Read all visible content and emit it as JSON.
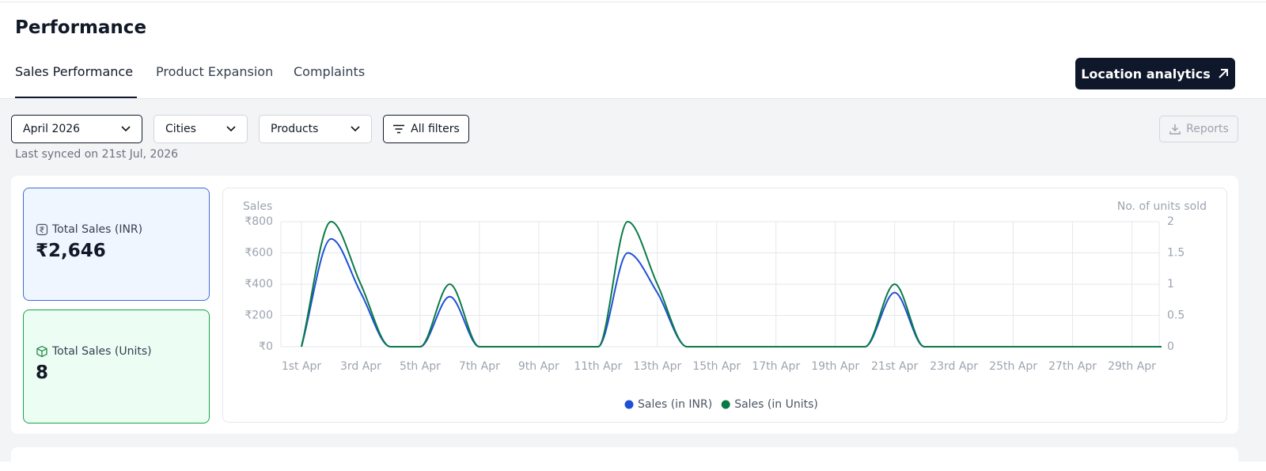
{
  "header": {
    "title": "Performance",
    "tabs": [
      "Sales Performance",
      "Product Expansion",
      "Complaints"
    ],
    "action": "Location analytics"
  },
  "filters": {
    "items": [
      "April 2026",
      "Cities",
      "Products",
      "All filters"
    ],
    "reports": "Reports",
    "sync_note": "Last synced on 21st Jul, 2026"
  },
  "cards": [
    {
      "label": "Total Sales (INR)",
      "value": "₹2,646"
    },
    {
      "label": "Total Sales (Units)",
      "value": "8"
    }
  ],
  "chart_data": {
    "type": "line",
    "ylabel": "Sales",
    "y2label": "No. of units sold",
    "categories": [
      "1st Apr",
      null,
      "3rd Apr",
      null,
      "5th Apr",
      null,
      "7th Apr",
      null,
      "9th Apr",
      null,
      "11th Apr",
      null,
      "13th Apr",
      null,
      "15th Apr",
      null,
      "17th Apr",
      null,
      "19th Apr",
      null,
      "21st Apr",
      null,
      "23rd Apr",
      null,
      "25th Apr",
      null,
      "27th Apr",
      null,
      "29th Apr",
      null
    ],
    "series": [
      {
        "name": "Sales (in INR)",
        "color": "#1d4fd8",
        "values": [
          0,
          690,
          345,
          0,
          0,
          320,
          0,
          0,
          0,
          0,
          0,
          600,
          345,
          0,
          0,
          0,
          0,
          0,
          0,
          0,
          346,
          0,
          0,
          0,
          0,
          0,
          0,
          0,
          0,
          0
        ]
      },
      {
        "name": "Sales (in Units)",
        "color": "#0a7a45",
        "axis": "y2",
        "values": [
          0,
          2,
          1,
          0,
          0,
          1,
          0,
          0,
          0,
          0,
          0,
          2,
          1,
          0,
          0,
          0,
          0,
          0,
          0,
          0,
          1,
          0,
          0,
          0,
          0,
          0,
          0,
          0,
          0,
          0
        ]
      }
    ],
    "ylim": [
      0,
      800
    ],
    "yticks": [
      {
        "value": 0,
        "label": "₹0"
      },
      {
        "value": 200,
        "label": "₹200"
      },
      {
        "value": 400,
        "label": "₹400"
      },
      {
        "value": 600,
        "label": "₹600"
      },
      {
        "value": 800,
        "label": "₹800"
      }
    ],
    "y2lim": [
      0,
      2
    ],
    "y2ticks": [
      0,
      0.5,
      1,
      1.5,
      2
    ],
    "grid": true,
    "legend": "bottom"
  }
}
